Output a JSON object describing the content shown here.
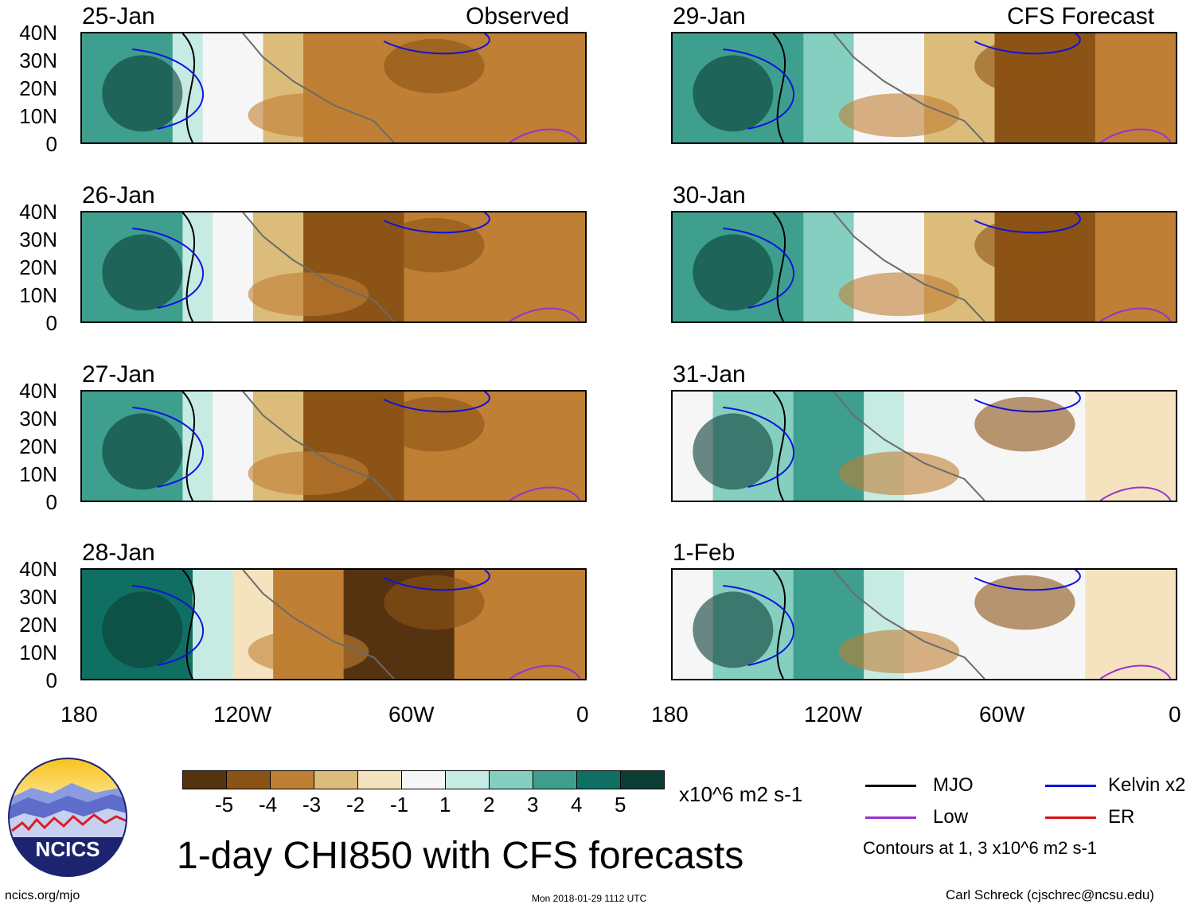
{
  "panels": [
    {
      "date": "25-Jan",
      "tag": "Observed"
    },
    {
      "date": "26-Jan",
      "tag": ""
    },
    {
      "date": "27-Jan",
      "tag": ""
    },
    {
      "date": "28-Jan",
      "tag": ""
    },
    {
      "date": "29-Jan",
      "tag": "CFS Forecast"
    },
    {
      "date": "30-Jan",
      "tag": ""
    },
    {
      "date": "31-Jan",
      "tag": ""
    },
    {
      "date": "1-Feb",
      "tag": ""
    }
  ],
  "axes": {
    "lat_labels": [
      "40N",
      "30N",
      "20N",
      "10N",
      "0"
    ],
    "lon_labels": [
      "180",
      "120W",
      "60W",
      "0"
    ]
  },
  "colorbar": {
    "labels": [
      "-5",
      "-4",
      "-3",
      "-2",
      "-1",
      "1",
      "2",
      "3",
      "4",
      "5"
    ],
    "colors": [
      "#553311",
      "#8c5316",
      "#bf7f34",
      "#dcbc7a",
      "#f4e3be",
      "#f6f6f6",
      "#c6ebe3",
      "#84cfc0",
      "#3e9f8e",
      "#0f6f62",
      "#0b3d35"
    ],
    "units": "x10^6 m2 s-1"
  },
  "legend": {
    "mjo": "MJO",
    "low": "Low",
    "kelvin": "Kelvin x2",
    "er": "ER",
    "mjo_color": "#000000",
    "low_color": "#9933cc",
    "kelvin_color": "#1111dd",
    "er_color": "#dd1111",
    "note": "Contours at 1, 3 x10^6 m2 s-1"
  },
  "title": "1-day CHI850 with CFS forecasts",
  "logo_text": "NCICS",
  "footer": {
    "left": "ncics.org/mjo",
    "center": "Mon 2018-01-29 1112 UTC",
    "right": "Carl Schreck (cjschrec@ncsu.edu)"
  }
}
